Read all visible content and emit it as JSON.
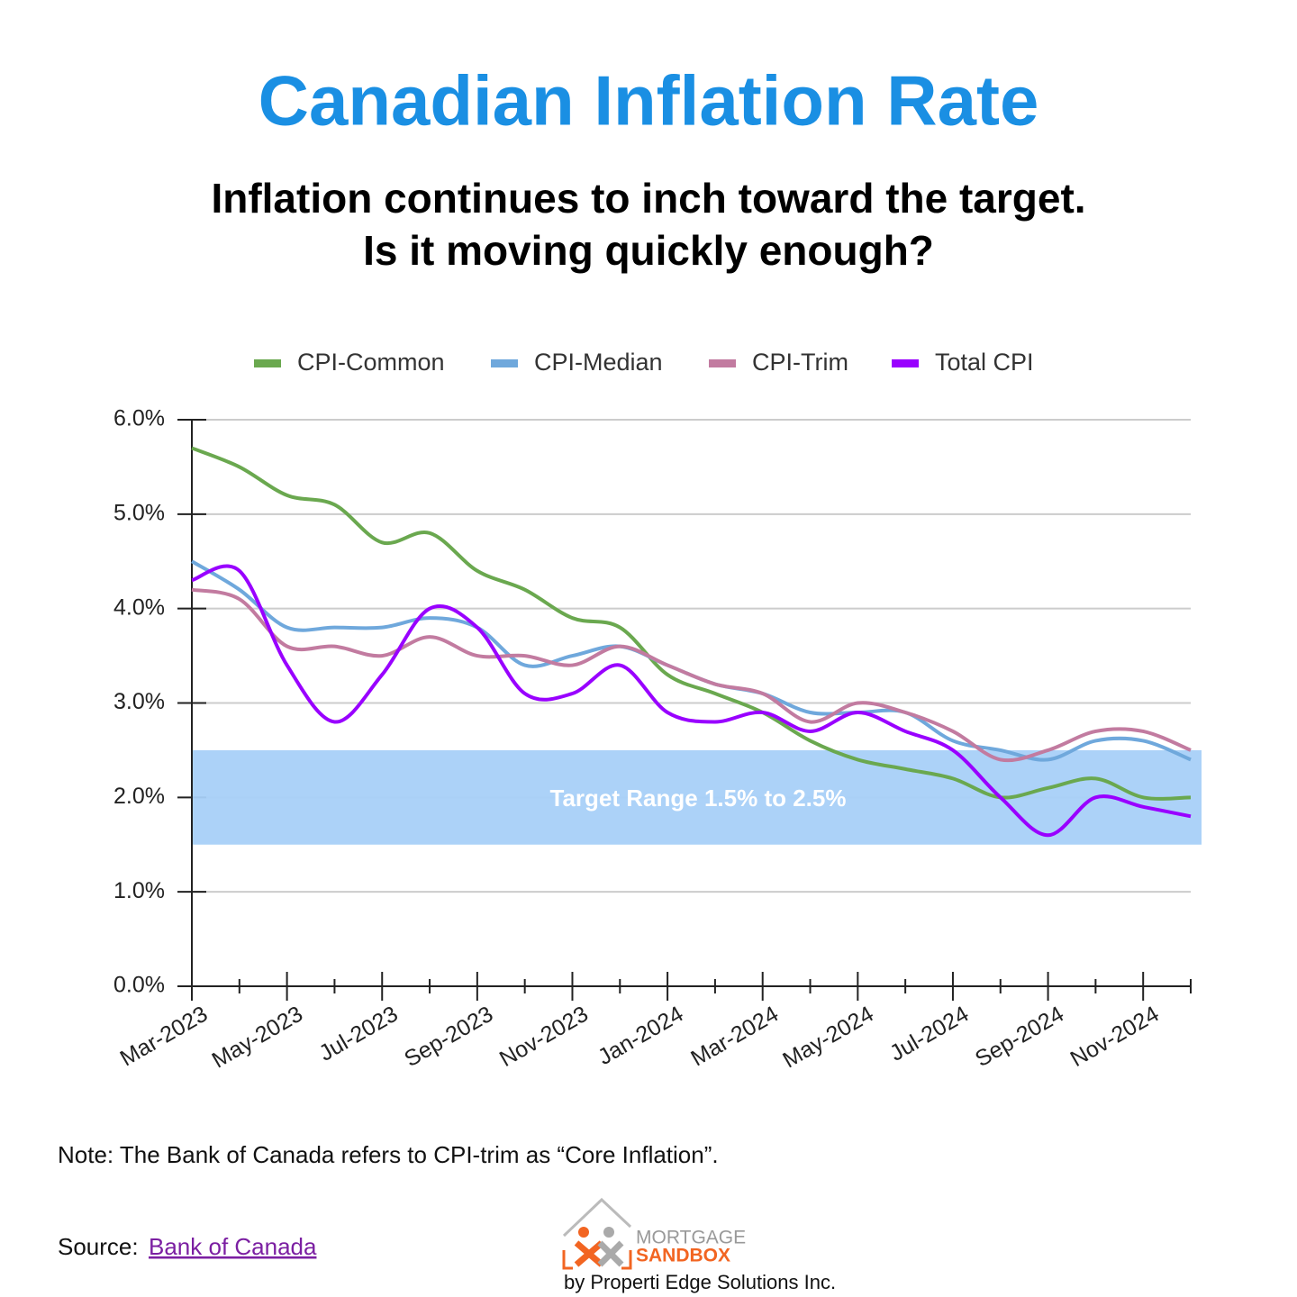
{
  "chart_data": {
    "type": "line",
    "title": "Canadian Inflation Rate",
    "subtitle": [
      "Inflation continues to inch toward the target.",
      "Is it moving quickly enough?"
    ],
    "categories": [
      "Mar-2023",
      null,
      "May-2023",
      null,
      "Jul-2023",
      null,
      "Sep-2023",
      null,
      "Nov-2023",
      null,
      "Jan-2024",
      null,
      "Mar-2024",
      null,
      "May-2024",
      null,
      "Jul-2024",
      null,
      "Sep-2024",
      null,
      "Nov-2024",
      null
    ],
    "series": [
      {
        "name": "CPI-Common",
        "color": "#6aa84f",
        "values": [
          5.7,
          5.5,
          5.2,
          5.1,
          4.7,
          4.8,
          4.4,
          4.2,
          3.9,
          3.8,
          3.3,
          3.1,
          2.9,
          2.6,
          2.4,
          2.3,
          2.2,
          2.0,
          2.1,
          2.2,
          2.0,
          2.0
        ]
      },
      {
        "name": "CPI-Median",
        "color": "#6fa8dc",
        "values": [
          4.5,
          4.2,
          3.8,
          3.8,
          3.8,
          3.9,
          3.8,
          3.4,
          3.5,
          3.6,
          3.4,
          3.2,
          3.1,
          2.9,
          2.9,
          2.9,
          2.6,
          2.5,
          2.4,
          2.6,
          2.6,
          2.4
        ]
      },
      {
        "name": "CPI-Trim",
        "color": "#c27ba0",
        "values": [
          4.2,
          4.1,
          3.6,
          3.6,
          3.5,
          3.7,
          3.5,
          3.5,
          3.4,
          3.6,
          3.4,
          3.2,
          3.1,
          2.8,
          3.0,
          2.9,
          2.7,
          2.4,
          2.5,
          2.7,
          2.7,
          2.5
        ]
      },
      {
        "name": "Total CPI",
        "color": "#9900ff",
        "values": [
          4.3,
          4.4,
          3.4,
          2.8,
          3.3,
          4.0,
          3.8,
          3.1,
          3.1,
          3.4,
          2.9,
          2.8,
          2.9,
          2.7,
          2.9,
          2.7,
          2.5,
          2.0,
          1.6,
          2.0,
          1.9,
          1.8
        ]
      }
    ],
    "ylim": [
      0,
      6
    ],
    "yticks": [
      {
        "value": 0,
        "label": "0.0%"
      },
      {
        "value": 1,
        "label": "1.0%"
      },
      {
        "value": 2,
        "label": "2.0%"
      },
      {
        "value": 3,
        "label": "3.0%"
      },
      {
        "value": 4,
        "label": "4.0%"
      },
      {
        "value": 5,
        "label": "5.0%"
      },
      {
        "value": 6,
        "label": "6.0%"
      }
    ],
    "grid": true,
    "legend": "top",
    "target_band": {
      "label": "Target Range 1.5% to 2.5%",
      "range": [
        1.5,
        2.5
      ],
      "color": "#a8d0f8"
    }
  },
  "footer": {
    "note": "Note: The Bank of Canada refers to CPI-trim as “Core Inflation”.",
    "source_label": "Source:",
    "source_link": "Bank of Canada",
    "logo": [
      "MORTGAGE",
      "SANDBOX"
    ],
    "byline": "by Properti Edge Solutions Inc."
  }
}
